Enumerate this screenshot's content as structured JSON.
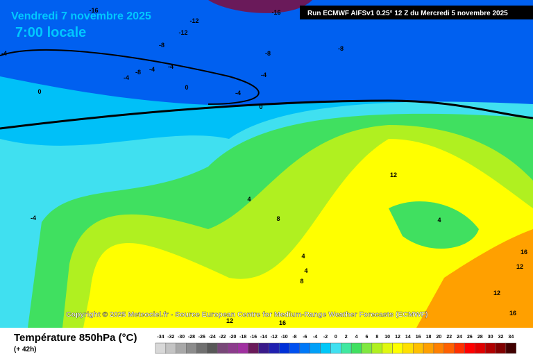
{
  "header": {
    "date": "Vendredi 7 novembre 2025",
    "time": "7:00 locale",
    "run": "Run ECMWF AIFSv1 0.25° 12 Z du Mercredi 5 novembre 2025"
  },
  "copyright": "Copyright © 2025 Meteociel.fr - Source European Centre for Medium-Range Weather Forecasts (ECMWF)",
  "contour_labels": [
    "-16",
    "-16",
    "-12",
    "-12",
    "-8",
    "-8",
    "-8",
    "-4",
    "-8",
    "-4",
    "-4",
    "-4",
    "-4",
    "0",
    "-4",
    "0",
    "0",
    "4",
    "-4",
    "8",
    "12",
    "4",
    "4",
    "4",
    "8",
    "16",
    "12",
    "12",
    "16",
    "12",
    "16"
  ],
  "legend": {
    "title": "Température 850hPa (°C)",
    "lead": "(+ 42h)",
    "scale": [
      {
        "label": "-34",
        "color": "#d8d8d8"
      },
      {
        "label": "-32",
        "color": "#c4c4c4"
      },
      {
        "label": "-30",
        "color": "#a8a8a8"
      },
      {
        "label": "-28",
        "color": "#8c8c8c"
      },
      {
        "label": "-26",
        "color": "#707070"
      },
      {
        "label": "-24",
        "color": "#585858"
      },
      {
        "label": "-22",
        "color": "#784878"
      },
      {
        "label": "-20",
        "color": "#8c3c8c"
      },
      {
        "label": "-18",
        "color": "#a030a0"
      },
      {
        "label": "-16",
        "color": "#6a1a5a"
      },
      {
        "label": "-14",
        "color": "#3a1a8a"
      },
      {
        "label": "-12",
        "color": "#2020b0"
      },
      {
        "label": "-10",
        "color": "#0030d8"
      },
      {
        "label": "-8",
        "color": "#0050f0"
      },
      {
        "label": "-6",
        "color": "#0078f8"
      },
      {
        "label": "-4",
        "color": "#00a0f8"
      },
      {
        "label": "-2",
        "color": "#00c8f8"
      },
      {
        "label": "0",
        "color": "#40e0f0"
      },
      {
        "label": "2",
        "color": "#40e8a0"
      },
      {
        "label": "4",
        "color": "#40e060"
      },
      {
        "label": "6",
        "color": "#80e840"
      },
      {
        "label": "8",
        "color": "#b0f020"
      },
      {
        "label": "10",
        "color": "#e0f810"
      },
      {
        "label": "12",
        "color": "#ffff00"
      },
      {
        "label": "14",
        "color": "#ffe000"
      },
      {
        "label": "16",
        "color": "#ffc000"
      },
      {
        "label": "18",
        "color": "#ffa000"
      },
      {
        "label": "20",
        "color": "#ff8000"
      },
      {
        "label": "22",
        "color": "#ff6000"
      },
      {
        "label": "24",
        "color": "#ff3000"
      },
      {
        "label": "26",
        "color": "#ff0000"
      },
      {
        "label": "28",
        "color": "#e00000"
      },
      {
        "label": "30",
        "color": "#b00000"
      },
      {
        "label": "32",
        "color": "#800000"
      },
      {
        "label": "34",
        "color": "#400000"
      }
    ]
  }
}
